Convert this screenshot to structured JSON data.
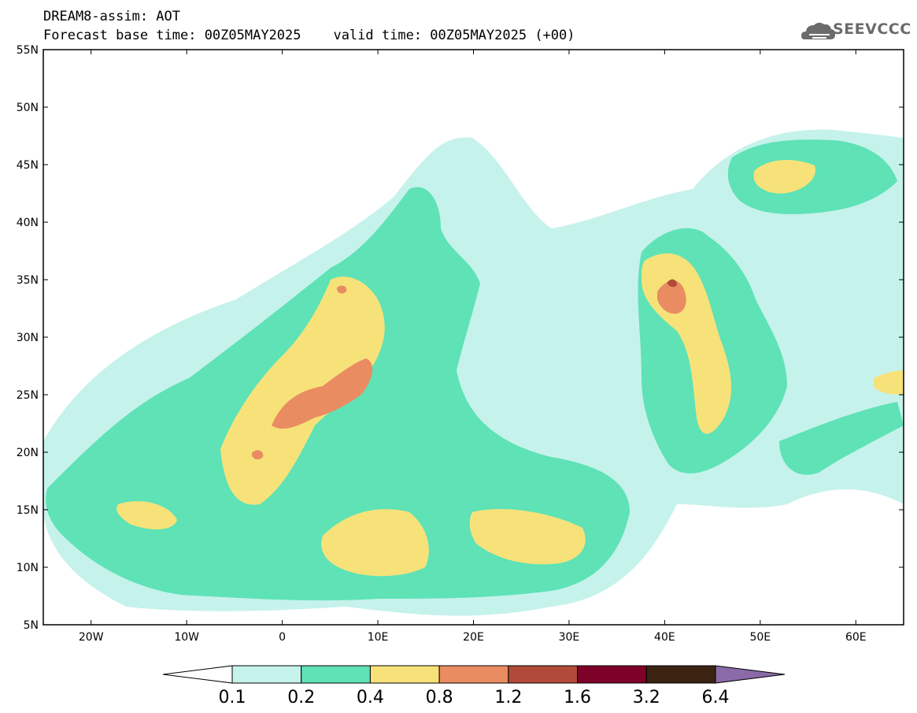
{
  "header": {
    "line1": "DREAM8-assim: AOT",
    "line2": "Forecast base time: 00Z05MAY2025    valid time: 00Z05MAY2025 (+00)"
  },
  "logo": {
    "text": "SEEVCCC",
    "icon": "cloud-icon"
  },
  "map": {
    "lon_range": [
      -25,
      65
    ],
    "lat_range": [
      5,
      55
    ],
    "x_ticks": [
      "20W",
      "10W",
      "0",
      "10E",
      "20E",
      "30E",
      "40E",
      "50E",
      "60E"
    ],
    "y_ticks": [
      "55N",
      "50N",
      "45N",
      "40N",
      "35N",
      "30N",
      "25N",
      "20N",
      "15N",
      "10N",
      "5N"
    ]
  },
  "colorbar": {
    "labels": [
      "0.1",
      "0.2",
      "0.4",
      "0.8",
      "1.2",
      "1.6",
      "3.2",
      "6.4"
    ],
    "colors": [
      "#ffffff",
      "#c6f2ec",
      "#5ee2b6",
      "#f7e27a",
      "#ea8c62",
      "#b24a3a",
      "#7e0228",
      "#3c2412",
      "#8a6aa8"
    ]
  },
  "chart_data": {
    "type": "heatmap",
    "variable": "AOT",
    "x_range": [
      -25,
      65
    ],
    "y_range": [
      5,
      55
    ],
    "levels": [
      0.1,
      0.2,
      0.4,
      0.8,
      1.2,
      1.6,
      3.2,
      6.4
    ]
  }
}
